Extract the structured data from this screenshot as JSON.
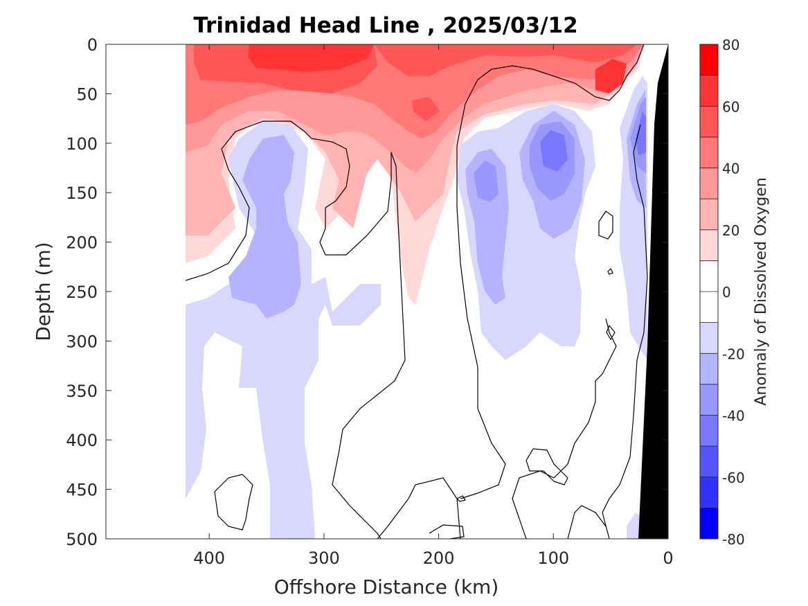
{
  "chart_data": {
    "type": "heatmap",
    "title": "Trinidad Head Line , 2025/03/12",
    "xlabel": "Offshore Distance (km)",
    "ylabel": "Depth (m)",
    "xlim": [
      490,
      0
    ],
    "ylim": [
      500,
      0
    ],
    "x_reversed": true,
    "y_reversed": true,
    "x_ticks": [
      400,
      300,
      200,
      100,
      0
    ],
    "x_tick_labels": [
      "400",
      "300",
      "200",
      "100",
      "0"
    ],
    "y_ticks": [
      0,
      50,
      100,
      150,
      200,
      250,
      300,
      350,
      400,
      450,
      500
    ],
    "y_tick_labels": [
      "0",
      "50",
      "100",
      "150",
      "200",
      "250",
      "300",
      "350",
      "400",
      "450",
      "500"
    ],
    "colorbar": {
      "label": "Anomaly of Dissolved Oxygen",
      "range": [
        -80,
        80
      ],
      "levels": [
        -80,
        -70,
        -60,
        -50,
        -40,
        -30,
        -20,
        -10,
        10,
        20,
        30,
        40,
        50,
        60,
        70,
        80
      ],
      "tick_values": [
        80,
        60,
        40,
        20,
        0,
        -20,
        -40,
        -60,
        -80
      ],
      "tick_labels": [
        "80",
        "60",
        "40",
        "20",
        "0",
        "-20",
        "-40",
        "-60",
        "-80"
      ],
      "colors": [
        "#0000ff",
        "#3333ff",
        "#5555ff",
        "#7777ff",
        "#9898ff",
        "#b3b3ff",
        "#d8d8ff",
        "#ffffff",
        "#ffffff",
        "#ffd8d8",
        "#ffb3b3",
        "#ff9898",
        "#ff7777",
        "#ff5555",
        "#ff3333",
        "#ff0000"
      ]
    },
    "data_extent_x": [
      420,
      0
    ],
    "contour_line_level": 0,
    "bathymetry_color": "#000000",
    "features": [
      {
        "type": "positive_anomaly",
        "region": "surface layer 0-100 m across section",
        "max_value": 60,
        "at": {
          "x": 270,
          "depth": 15
        }
      },
      {
        "type": "positive_anomaly",
        "region": "nearshore surface patch",
        "max_value": 60,
        "at": {
          "x": 55,
          "depth": 35
        }
      },
      {
        "type": "negative_anomaly",
        "region": "subsurface core",
        "min_value": -40,
        "at": {
          "x": 100,
          "depth": 110
        }
      },
      {
        "type": "negative_anomaly",
        "region": "subsurface core",
        "min_value": -30,
        "at": {
          "x": 160,
          "depth": 150
        }
      },
      {
        "type": "negative_anomaly",
        "region": "subsurface core",
        "min_value": -30,
        "at": {
          "x": 335,
          "depth": 230
        }
      },
      {
        "type": "negative_anomaly",
        "region": "near-bottom slope",
        "min_value": -40,
        "at": {
          "x": 15,
          "depth": 100
        }
      }
    ]
  }
}
